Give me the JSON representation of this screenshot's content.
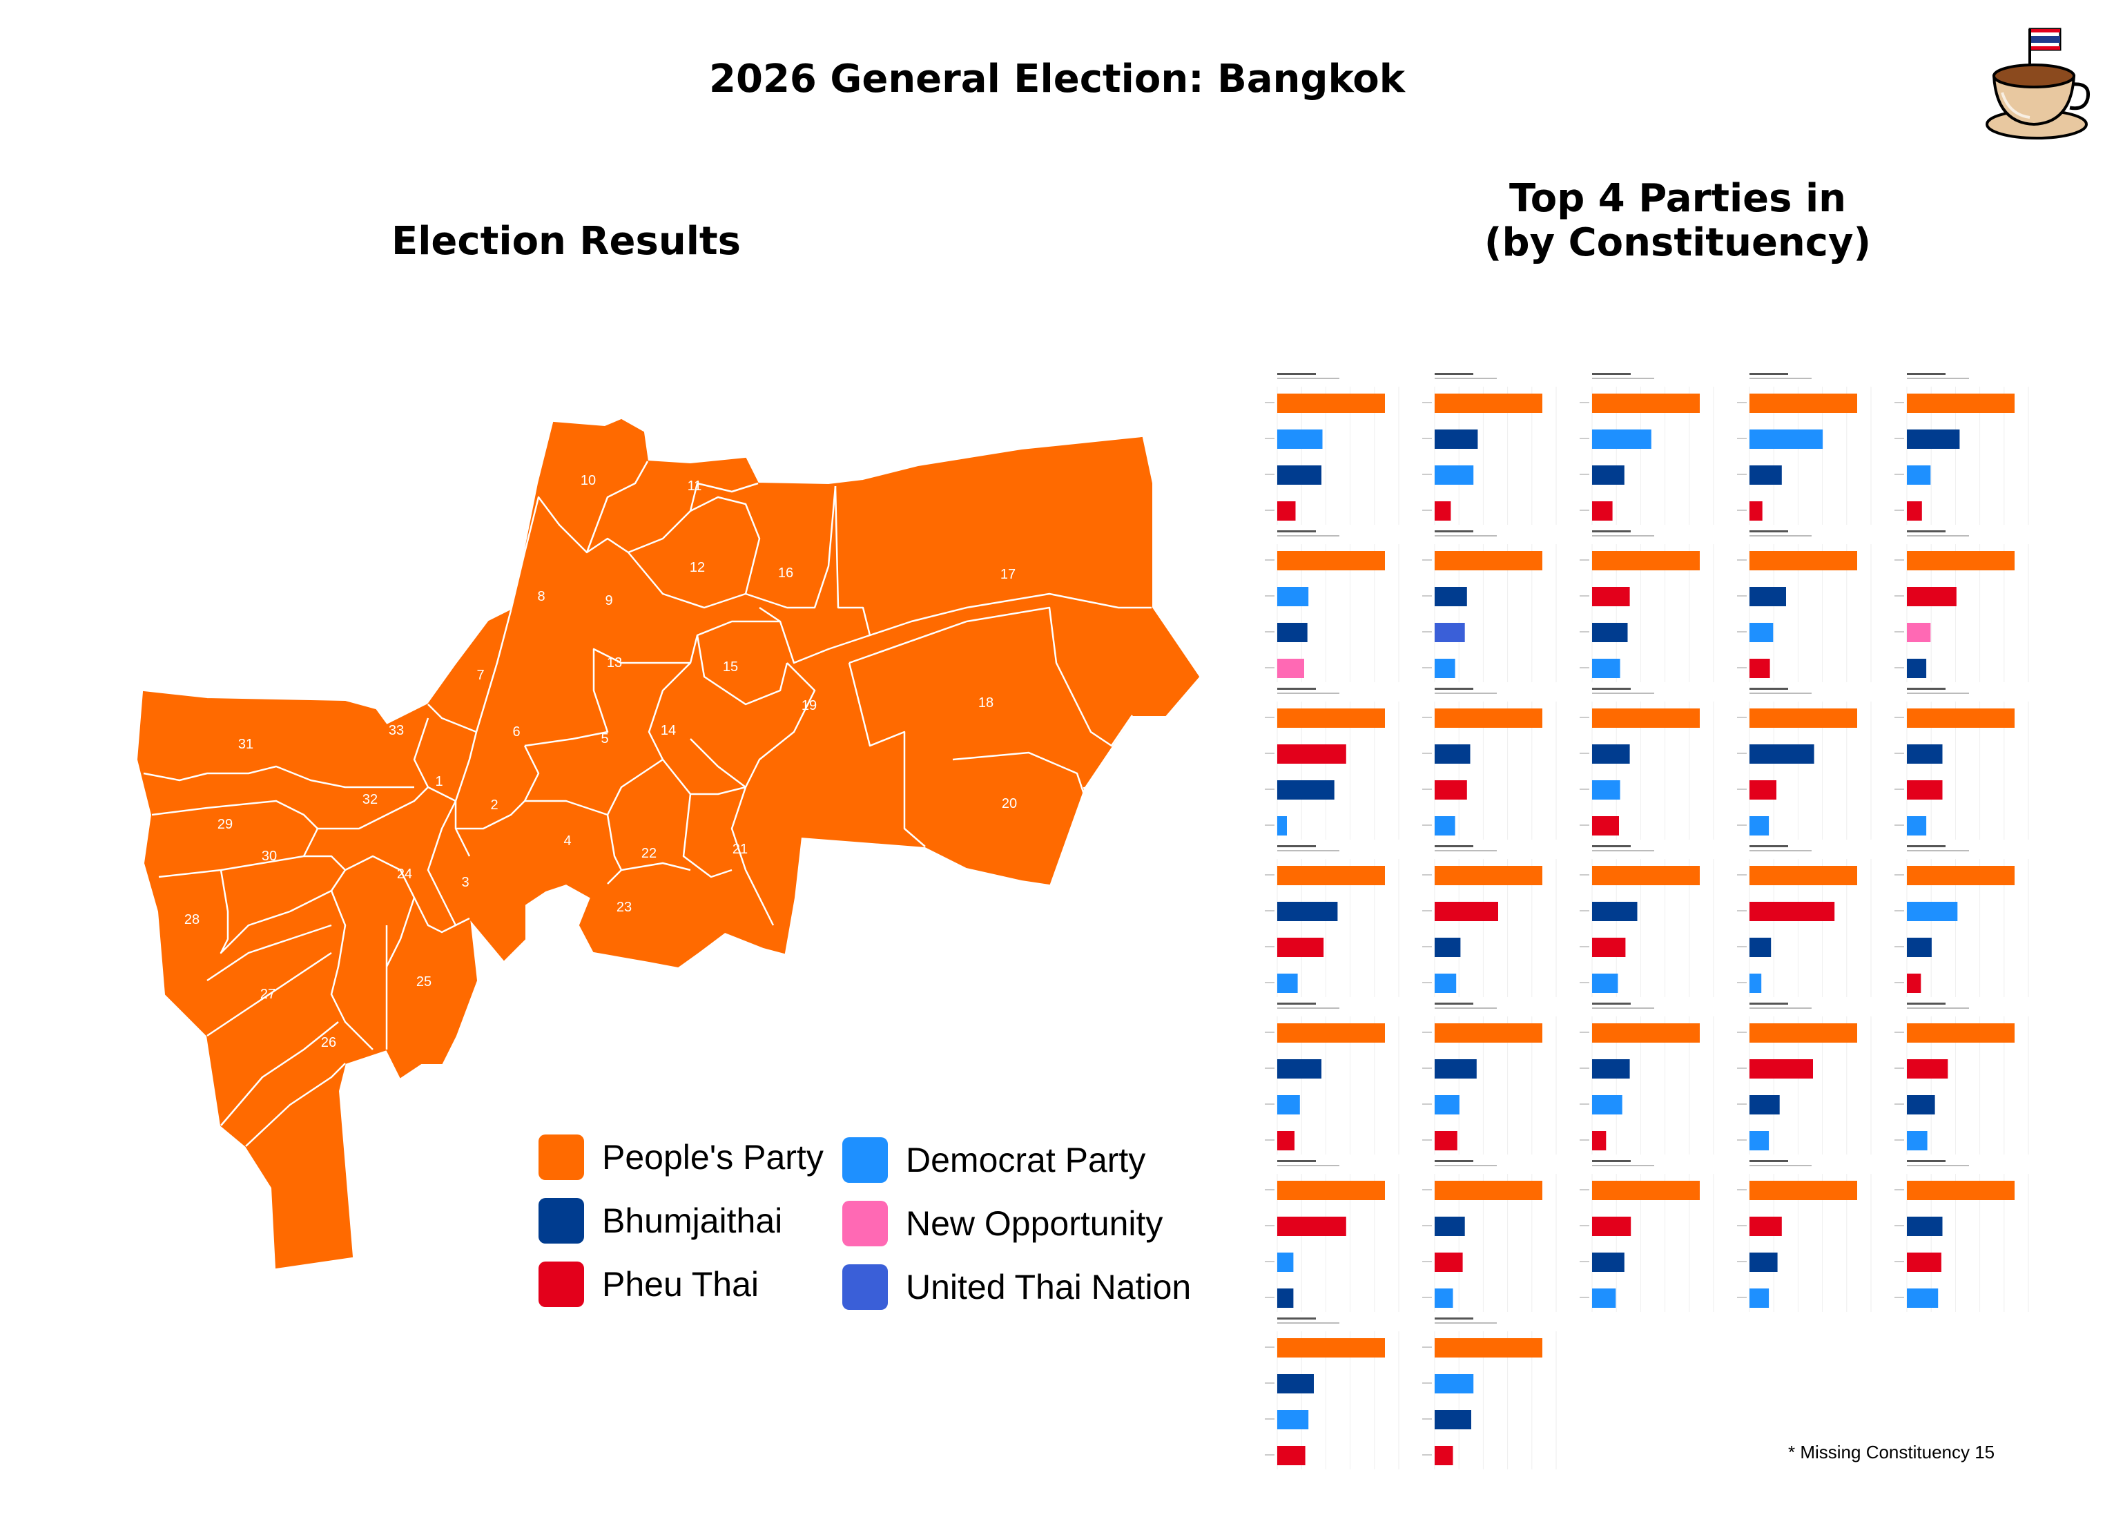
{
  "title": "2026 General Election: Bangkok",
  "map": {
    "title": "Election Results",
    "fill_color": "#FF6A00",
    "constituency_labels": [
      "1",
      "2",
      "3",
      "4",
      "5",
      "6",
      "7",
      "8",
      "9",
      "10",
      "11",
      "12",
      "13",
      "14",
      "15",
      "16",
      "17",
      "18",
      "19",
      "20",
      "21",
      "22",
      "23",
      "24",
      "25",
      "26",
      "27",
      "28",
      "29",
      "30",
      "31",
      "32",
      "33"
    ]
  },
  "legend": {
    "items": [
      {
        "label": "People's Party",
        "color": "#FF6A00"
      },
      {
        "label": "Bhumjaithai",
        "color": "#003C8F"
      },
      {
        "label": "Pheu Thai",
        "color": "#E3001B"
      },
      {
        "label": "Democrat Party",
        "color": "#1E90FF"
      },
      {
        "label": "New Opportunity",
        "color": "#FF69B4"
      },
      {
        "label": "United Thai Nation",
        "color": "#3A5FD8"
      }
    ]
  },
  "chart_data": {
    "type": "bar",
    "title": "Top 4 Parties in\n(by Constituency)",
    "orientation": "horizontal",
    "scale_note": "bar lengths relative to the leading party (=100) in each constituency",
    "party_colors": {
      "PP": "#FF6A00",
      "BJT": "#003C8F",
      "PT": "#E3001B",
      "DEM": "#1E90FF",
      "NO": "#FF69B4",
      "UTN": "#3A5FD8"
    },
    "constituencies": [
      {
        "bars": [
          [
            "PP",
            100
          ],
          [
            "DEM",
            42
          ],
          [
            "BJT",
            41
          ],
          [
            "PT",
            17
          ]
        ]
      },
      {
        "bars": [
          [
            "PP",
            100
          ],
          [
            "BJT",
            40
          ],
          [
            "DEM",
            36
          ],
          [
            "PT",
            15
          ]
        ]
      },
      {
        "bars": [
          [
            "PP",
            100
          ],
          [
            "DEM",
            55
          ],
          [
            "BJT",
            30
          ],
          [
            "PT",
            19
          ]
        ]
      },
      {
        "bars": [
          [
            "PP",
            100
          ],
          [
            "DEM",
            68
          ],
          [
            "BJT",
            30
          ],
          [
            "PT",
            12
          ]
        ]
      },
      {
        "bars": [
          [
            "PP",
            100
          ],
          [
            "BJT",
            49
          ],
          [
            "DEM",
            22
          ],
          [
            "PT",
            14
          ]
        ]
      },
      {
        "bars": [
          [
            "PP",
            100
          ],
          [
            "DEM",
            29
          ],
          [
            "BJT",
            28
          ],
          [
            "NO",
            25
          ]
        ]
      },
      {
        "bars": [
          [
            "PP",
            100
          ],
          [
            "BJT",
            30
          ],
          [
            "UTN",
            28
          ],
          [
            "DEM",
            19
          ]
        ]
      },
      {
        "bars": [
          [
            "PP",
            100
          ],
          [
            "PT",
            35
          ],
          [
            "BJT",
            33
          ],
          [
            "DEM",
            26
          ]
        ]
      },
      {
        "bars": [
          [
            "PP",
            100
          ],
          [
            "BJT",
            34
          ],
          [
            "DEM",
            22
          ],
          [
            "PT",
            19
          ]
        ]
      },
      {
        "bars": [
          [
            "PP",
            100
          ],
          [
            "PT",
            46
          ],
          [
            "NO",
            22
          ],
          [
            "BJT",
            18
          ]
        ]
      },
      {
        "bars": [
          [
            "PP",
            100
          ],
          [
            "PT",
            64
          ],
          [
            "BJT",
            53
          ],
          [
            "DEM",
            9
          ]
        ]
      },
      {
        "bars": [
          [
            "PP",
            100
          ],
          [
            "BJT",
            33
          ],
          [
            "PT",
            30
          ],
          [
            "DEM",
            19
          ]
        ]
      },
      {
        "bars": [
          [
            "PP",
            100
          ],
          [
            "BJT",
            35
          ],
          [
            "DEM",
            26
          ],
          [
            "PT",
            25
          ]
        ]
      },
      {
        "bars": [
          [
            "PP",
            100
          ],
          [
            "BJT",
            60
          ],
          [
            "PT",
            25
          ],
          [
            "DEM",
            18
          ]
        ]
      },
      {
        "bars": [
          [
            "PP",
            100
          ],
          [
            "BJT",
            33
          ],
          [
            "PT",
            33
          ],
          [
            "DEM",
            18
          ]
        ]
      },
      {
        "bars": [
          [
            "PP",
            100
          ],
          [
            "BJT",
            56
          ],
          [
            "PT",
            43
          ],
          [
            "DEM",
            19
          ]
        ]
      },
      {
        "bars": [
          [
            "PP",
            100
          ],
          [
            "PT",
            59
          ],
          [
            "BJT",
            24
          ],
          [
            "DEM",
            20
          ]
        ]
      },
      {
        "bars": [
          [
            "PP",
            100
          ],
          [
            "BJT",
            42
          ],
          [
            "PT",
            31
          ],
          [
            "DEM",
            24
          ]
        ]
      },
      {
        "bars": [
          [
            "PP",
            100
          ],
          [
            "PT",
            79
          ],
          [
            "BJT",
            20
          ],
          [
            "DEM",
            11
          ]
        ]
      },
      {
        "bars": [
          [
            "PP",
            100
          ],
          [
            "DEM",
            47
          ],
          [
            "BJT",
            23
          ],
          [
            "PT",
            13
          ]
        ]
      },
      {
        "bars": [
          [
            "PP",
            100
          ],
          [
            "BJT",
            41
          ],
          [
            "DEM",
            21
          ],
          [
            "PT",
            16
          ]
        ]
      },
      {
        "bars": [
          [
            "PP",
            100
          ],
          [
            "BJT",
            39
          ],
          [
            "DEM",
            23
          ],
          [
            "PT",
            21
          ]
        ]
      },
      {
        "bars": [
          [
            "PP",
            100
          ],
          [
            "BJT",
            35
          ],
          [
            "DEM",
            28
          ],
          [
            "PT",
            13
          ]
        ]
      },
      {
        "bars": [
          [
            "PP",
            100
          ],
          [
            "PT",
            59
          ],
          [
            "BJT",
            28
          ],
          [
            "DEM",
            18
          ]
        ]
      },
      {
        "bars": [
          [
            "PP",
            100
          ],
          [
            "PT",
            38
          ],
          [
            "BJT",
            26
          ],
          [
            "DEM",
            19
          ]
        ]
      },
      {
        "bars": [
          [
            "PP",
            100
          ],
          [
            "PT",
            64
          ],
          [
            "DEM",
            15
          ],
          [
            "BJT",
            15
          ]
        ]
      },
      {
        "bars": [
          [
            "PP",
            100
          ],
          [
            "BJT",
            28
          ],
          [
            "PT",
            26
          ],
          [
            "DEM",
            17
          ]
        ]
      },
      {
        "bars": [
          [
            "PP",
            100
          ],
          [
            "PT",
            36
          ],
          [
            "BJT",
            30
          ],
          [
            "DEM",
            22
          ]
        ]
      },
      {
        "bars": [
          [
            "PP",
            100
          ],
          [
            "PT",
            30
          ],
          [
            "BJT",
            26
          ],
          [
            "DEM",
            18
          ]
        ]
      },
      {
        "bars": [
          [
            "PP",
            100
          ],
          [
            "BJT",
            33
          ],
          [
            "PT",
            32
          ],
          [
            "DEM",
            29
          ]
        ]
      },
      {
        "bars": [
          [
            "PP",
            100
          ],
          [
            "BJT",
            34
          ],
          [
            "DEM",
            29
          ],
          [
            "PT",
            26
          ]
        ]
      },
      {
        "bars": [
          [
            "PP",
            100
          ],
          [
            "DEM",
            36
          ],
          [
            "BJT",
            34
          ],
          [
            "PT",
            17
          ]
        ]
      }
    ]
  },
  "footnote": "* Missing Constituency 15"
}
